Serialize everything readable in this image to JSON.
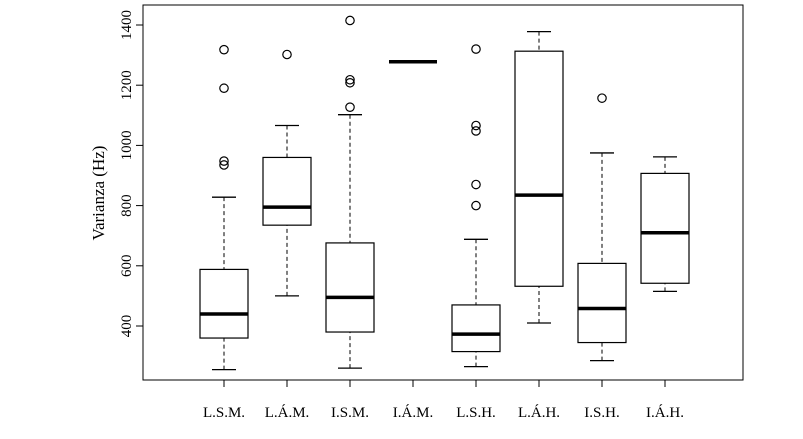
{
  "chart_data": {
    "type": "boxplot",
    "ylabel": "Varianza (Hz)",
    "yticks": [
      400,
      600,
      800,
      1000,
      1200,
      1400
    ],
    "ylim": [
      220,
      1460
    ],
    "categories": [
      "L.S.M.",
      "L.Á.M.",
      "I.S.M.",
      "I.Á.M.",
      "L.S.H.",
      "L.Á.H.",
      "I.S.H.",
      "I.Á.H."
    ],
    "boxes": [
      {
        "label": "L.S.M.",
        "min": 255,
        "q1": 360,
        "median": 440,
        "q3": 588,
        "max": 828,
        "outliers": [
          935,
          948,
          1190,
          1318
        ]
      },
      {
        "label": "L.Á.M.",
        "min": 500,
        "q1": 735,
        "median": 795,
        "q3": 960,
        "max": 1066,
        "outliers": [
          1302
        ]
      },
      {
        "label": "I.S.M.",
        "min": 260,
        "q1": 380,
        "median": 495,
        "q3": 676,
        "max": 1102,
        "outliers": [
          1127,
          1208,
          1218,
          1415
        ]
      },
      {
        "label": "I.Á.M.",
        "min": 1278,
        "q1": 1278,
        "median": 1278,
        "q3": 1278,
        "max": 1278,
        "outliers": []
      },
      {
        "label": "L.S.H.",
        "min": 265,
        "q1": 315,
        "median": 373,
        "q3": 470,
        "max": 688,
        "outliers": [
          800,
          870,
          1048,
          1066,
          1320
        ]
      },
      {
        "label": "L.Á.H.",
        "min": 410,
        "q1": 532,
        "median": 835,
        "q3": 1313,
        "max": 1378,
        "outliers": []
      },
      {
        "label": "I.S.H.",
        "min": 285,
        "q1": 345,
        "median": 458,
        "q3": 608,
        "max": 975,
        "outliers": [
          1157
        ]
      },
      {
        "label": "I.Á.H.",
        "min": 515,
        "q1": 542,
        "median": 710,
        "q3": 907,
        "max": 962,
        "outliers": []
      }
    ],
    "grid": false,
    "legend": "none"
  }
}
